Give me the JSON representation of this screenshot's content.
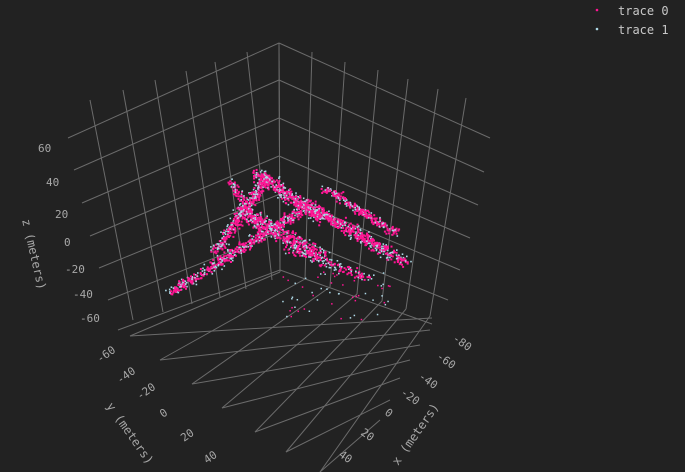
{
  "chart_data": {
    "type": "scatter3d",
    "title": "",
    "xlabel": "x (meters)",
    "ylabel": "y (meters)",
    "zlabel": "z (meters)",
    "x_ticks": [
      "-80",
      "-60",
      "-40",
      "-20",
      "0",
      "20",
      "40"
    ],
    "y_ticks": [
      "-60",
      "-40",
      "-20",
      "0",
      "20",
      "40"
    ],
    "z_ticks": [
      "60",
      "40",
      "20",
      "0",
      "-20",
      "-40",
      "-60"
    ],
    "grid": true,
    "legend_position": "top-right",
    "background": "#222222",
    "series": [
      {
        "name": "trace 0",
        "color": "#ff1493"
      },
      {
        "name": "trace 1",
        "color": "#add8e6"
      }
    ]
  }
}
